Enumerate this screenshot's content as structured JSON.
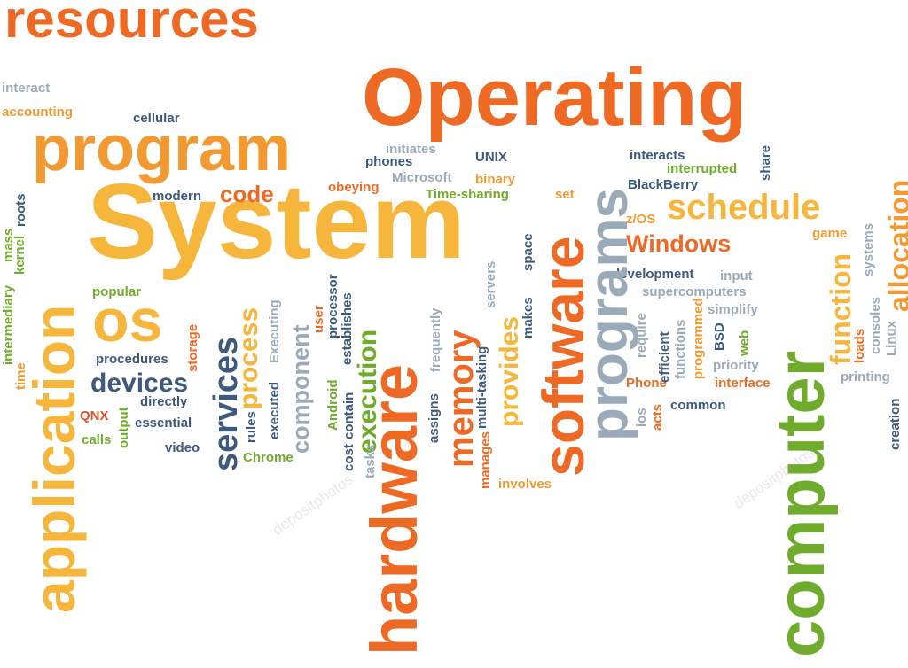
{
  "words": {
    "resources": "resources",
    "operating": "Operating",
    "interact": "interact",
    "accounting": "accounting",
    "cellular": "cellular",
    "program": "program",
    "system": "System",
    "os": "os",
    "application": "application",
    "kernel": "kernel",
    "mass": "mass",
    "roots": "roots",
    "intermediary": "intermediary",
    "time": "time",
    "popular": "popular",
    "procedures": "procedures",
    "devices": "devices",
    "directly": "directly",
    "qnx": "QNX",
    "essential": "essential",
    "output": "output",
    "calls": "calls",
    "video": "video",
    "modern": "modern",
    "code": "code",
    "storage": "storage",
    "services": "services",
    "process": "process",
    "executing": "Executing",
    "rules": "rules",
    "executed": "executed",
    "chrome": "Chrome",
    "component": "component",
    "user": "user",
    "android": "Android",
    "cost": "cost",
    "processor": "processor",
    "contain": "contain",
    "establishes": "establishes",
    "tasks": "tasks",
    "execution": "execution",
    "hardware": "hardware",
    "frequently": "frequently",
    "assigns": "assigns",
    "memory": "memory",
    "multitasking": "multi-tasking",
    "manages": "manages",
    "servers": "servers",
    "provides": "provides",
    "makes": "makes",
    "space": "space",
    "software": "software",
    "involves": "involves",
    "obeying": "obeying",
    "phones": "phones",
    "initiates": "initiates",
    "microsoft": "Microsoft",
    "unix": "UNIX",
    "binary": "binary",
    "timesharing": "Time-sharing",
    "set": "set",
    "programs": "programs",
    "interacts": "interacts",
    "interrupted": "interrupted",
    "blackberry": "BlackBerry",
    "share": "share",
    "schedule": "schedule",
    "zos": "z/OS",
    "windows": "Windows",
    "game": "game",
    "systems": "systems",
    "development": "development",
    "input": "input",
    "supercomputers": "supercomputers",
    "simplify": "simplify",
    "require": "require",
    "efficient": "efficient",
    "functions": "functions",
    "programmed": "programmed",
    "bsd": "BSD",
    "web": "web",
    "priority": "priority",
    "phone": "Phone",
    "interface": "interface",
    "ios": "ios",
    "acts": "acts",
    "common": "common",
    "computer": "computer",
    "function": "function",
    "loads": "loads",
    "consoles": "consoles",
    "linux": "Linux",
    "allocation": "allocation",
    "printing": "printing",
    "creation": "creation"
  },
  "watermark": "depositphotos",
  "colors": {
    "orange": "#ee6a24",
    "yellow": "#f6b63c",
    "green": "#6fac2b",
    "navy": "#3c5a7e",
    "silver": "#9aaab8",
    "dark": "#3d4654",
    "red": "#d9532a",
    "amber": "#f29a31"
  }
}
